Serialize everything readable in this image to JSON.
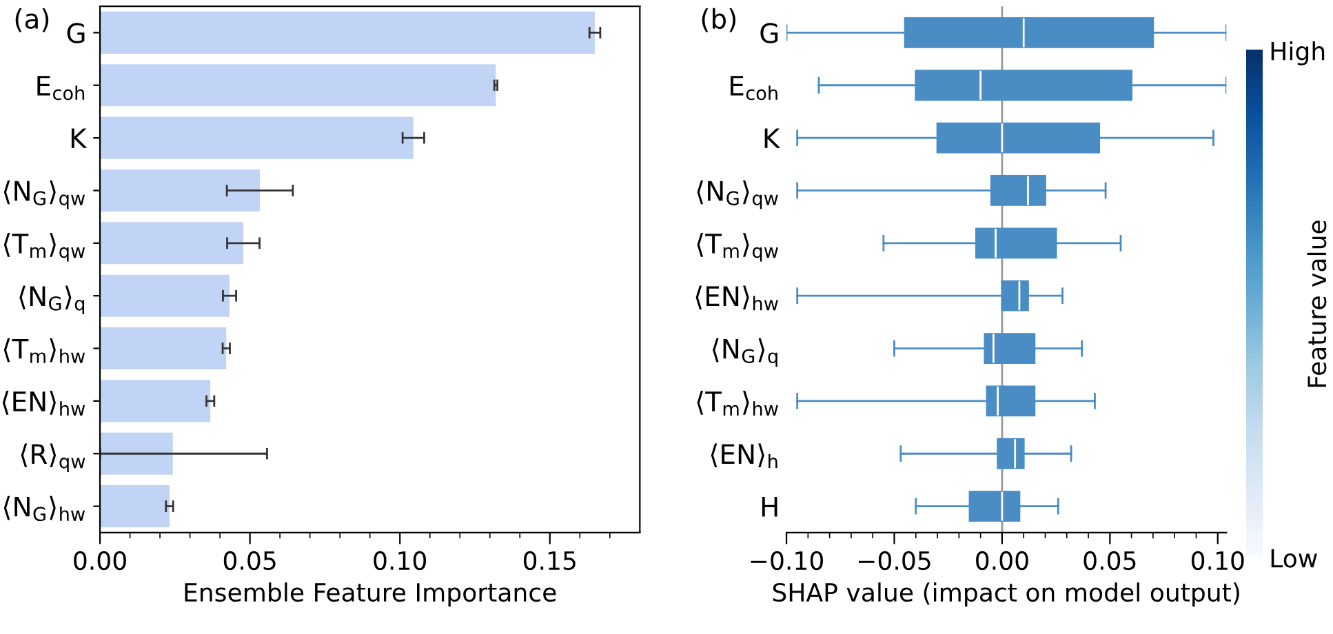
{
  "chart_data": [
    {
      "type": "bar",
      "orientation": "horizontal",
      "title": "(a)",
      "xlabel": "Ensemble Feature Importance",
      "categories": [
        "G",
        "E$_{coh}$",
        "K",
        "⟨N$_{G}$⟩$_{qw}$",
        "⟨T$_{m}$⟩$_{qw}$",
        "⟨N$_{G}$⟩$_{q}$",
        "⟨T$_{m}$⟩$_{hw}$",
        "⟨EN⟩$_{hw}$",
        "⟨R⟩$_{qw}$",
        "⟨N$_{G}$⟩$_{hw}$"
      ],
      "values": [
        0.165,
        0.132,
        0.1045,
        0.0533,
        0.0478,
        0.0432,
        0.0421,
        0.0368,
        0.0243,
        0.0232
      ],
      "errors": [
        0.0018,
        0.0005,
        0.0036,
        0.011,
        0.0054,
        0.0022,
        0.0012,
        0.0013,
        [
          0.0,
          0.0557
        ],
        0.0012
      ],
      "color": "#c2d4f5",
      "xlim": [
        0,
        0.18
      ],
      "xticks": [
        {
          "value": 0,
          "label": "0.00"
        },
        {
          "value": 0.01,
          "label": null
        },
        {
          "value": 0.02,
          "label": null
        },
        {
          "value": 0.03,
          "label": null
        },
        {
          "value": 0.04,
          "label": null
        },
        {
          "value": 0.05,
          "label": "0.05"
        },
        {
          "value": 0.06,
          "label": null
        },
        {
          "value": 0.07,
          "label": null
        },
        {
          "value": 0.08,
          "label": null
        },
        {
          "value": 0.09,
          "label": null
        },
        {
          "value": 0.1,
          "label": "0.10"
        },
        {
          "value": 0.11,
          "label": null
        },
        {
          "value": 0.12,
          "label": null
        },
        {
          "value": 0.13,
          "label": null
        },
        {
          "value": 0.14,
          "label": null
        },
        {
          "value": 0.15,
          "label": "0.15"
        },
        {
          "value": 0.16,
          "label": null
        },
        {
          "value": 0.17,
          "label": null
        }
      ],
      "grid": false,
      "legend": false
    },
    {
      "type": "box",
      "orientation": "horizontal",
      "title": "(b)",
      "xlabel": "SHAP value (impact on model output)",
      "clabel": "Feature value",
      "categories": [
        "G",
        "E$_{coh}$",
        "K",
        "⟨N$_{G}$⟩$_{qw}$",
        "⟨T$_{m}$⟩$_{qw}$",
        "⟨EN⟩$_{hw}$",
        "⟨N$_{G}$⟩$_{q}$",
        "⟨T$_{m}$⟩$_{hw}$",
        "⟨EN⟩$_{h}$",
        "H"
      ],
      "series": [
        {
          "color": "#4a8cc4",
          "boxes": [
            {
              "low": -0.1,
              "q1": -0.045,
              "median": 0.01,
              "q3": 0.07,
              "high": 0.104
            },
            {
              "low": -0.085,
              "q1": -0.04,
              "median": -0.01,
              "q3": 0.06,
              "high": 0.104
            },
            {
              "low": -0.095,
              "q1": -0.03,
              "median": 0.0,
              "q3": 0.045,
              "high": 0.098
            },
            {
              "low": -0.095,
              "q1": -0.005,
              "median": 0.012,
              "q3": 0.02,
              "high": 0.048
            },
            {
              "low": -0.055,
              "q1": -0.012,
              "median": -0.003,
              "q3": 0.025,
              "high": 0.055
            },
            {
              "low": -0.095,
              "q1": 0.0,
              "median": 0.008,
              "q3": 0.012,
              "high": 0.028
            },
            {
              "low": -0.05,
              "q1": -0.008,
              "median": -0.004,
              "q3": 0.015,
              "high": 0.037
            },
            {
              "low": -0.095,
              "q1": -0.007,
              "median": -0.002,
              "q3": 0.015,
              "high": 0.043
            },
            {
              "low": -0.047,
              "q1": -0.002,
              "median": 0.006,
              "q3": 0.01,
              "high": 0.032
            },
            {
              "low": -0.04,
              "q1": -0.015,
              "median": 0.0,
              "q3": 0.008,
              "high": 0.026
            }
          ]
        }
      ],
      "xlim": [
        -0.1,
        0.104
      ],
      "xticks": [
        {
          "value": -0.1,
          "label": "−0.10"
        },
        {
          "value": -0.09,
          "label": null
        },
        {
          "value": -0.08,
          "label": null
        },
        {
          "value": -0.07,
          "label": null
        },
        {
          "value": -0.06,
          "label": null
        },
        {
          "value": -0.05,
          "label": "−0.05"
        },
        {
          "value": -0.04,
          "label": null
        },
        {
          "value": -0.03,
          "label": null
        },
        {
          "value": -0.02,
          "label": null
        },
        {
          "value": -0.01,
          "label": null
        },
        {
          "value": 0,
          "label": "0.00"
        },
        {
          "value": 0.01,
          "label": null
        },
        {
          "value": 0.02,
          "label": null
        },
        {
          "value": 0.03,
          "label": null
        },
        {
          "value": 0.04,
          "label": null
        },
        {
          "value": 0.05,
          "label": "0.05"
        },
        {
          "value": 0.06,
          "label": null
        },
        {
          "value": 0.07,
          "label": null
        },
        {
          "value": 0.08,
          "label": null
        },
        {
          "value": 0.09,
          "label": null
        },
        {
          "value": 0.1,
          "label": "0.10"
        }
      ],
      "ref_lines": [
        {
          "axis": "x",
          "value": 0,
          "color": "#999999"
        }
      ],
      "clim": [
        0,
        1
      ],
      "cticks": [
        {
          "value": 0,
          "label": "Low"
        },
        {
          "value": 1,
          "label": "High"
        }
      ],
      "grid": false,
      "legend": false
    }
  ]
}
